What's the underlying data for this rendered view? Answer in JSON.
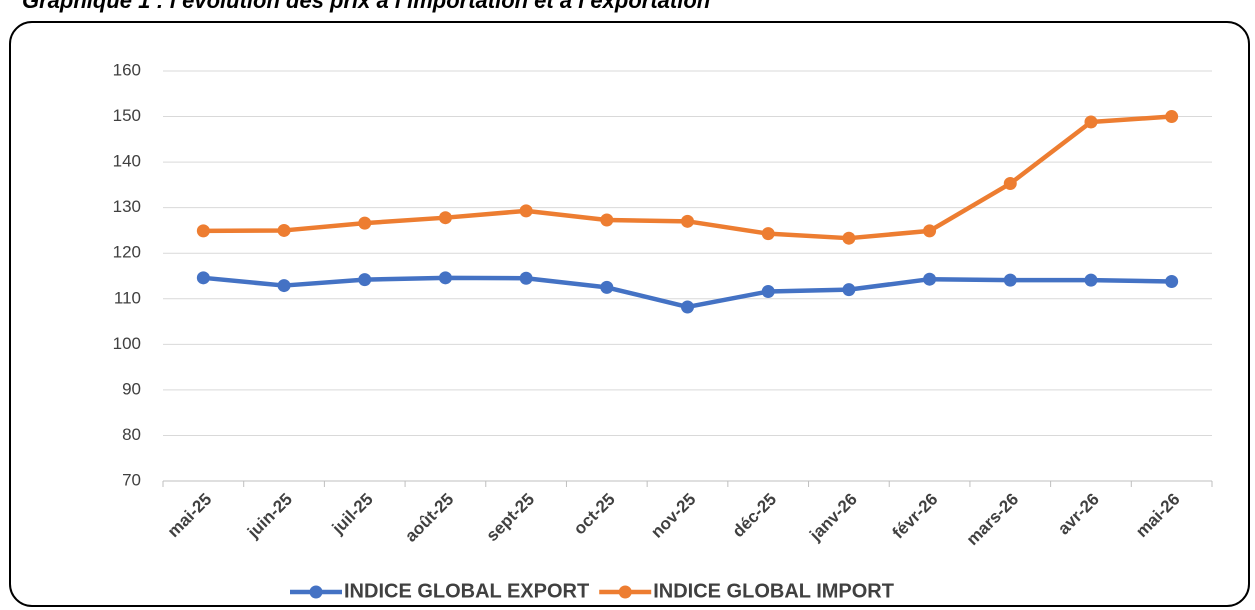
{
  "chart_data": {
    "type": "line",
    "title": "Graphique 1 : l’évolution des prix à l’importation et à l’exportation",
    "categories": [
      "mai-25",
      "juin-25",
      "juil-25",
      "août-25",
      "sept-25",
      "oct-25",
      "nov-25",
      "déc-25",
      "janv-26",
      "févr-26",
      "mars-26",
      "avr-26",
      "mai-26"
    ],
    "series": [
      {
        "name": "INDICE GLOBAL EXPORT",
        "color": "#4472c4",
        "values": [
          114.6,
          112.9,
          114.2,
          114.6,
          114.5,
          112.5,
          108.2,
          111.6,
          112.0,
          114.3,
          114.1,
          114.1,
          113.8
        ]
      },
      {
        "name": "INDICE GLOBAL IMPORT",
        "color": "#ed7d31",
        "values": [
          124.9,
          125.0,
          126.6,
          127.8,
          129.3,
          127.3,
          127.0,
          124.3,
          123.3,
          124.9,
          135.3,
          148.8,
          150.0
        ]
      }
    ],
    "ylim": [
      70,
      160
    ],
    "yticks": [
      70,
      80,
      90,
      100,
      110,
      120,
      130,
      140,
      150,
      160
    ],
    "grid": true,
    "legend": "bottom"
  }
}
